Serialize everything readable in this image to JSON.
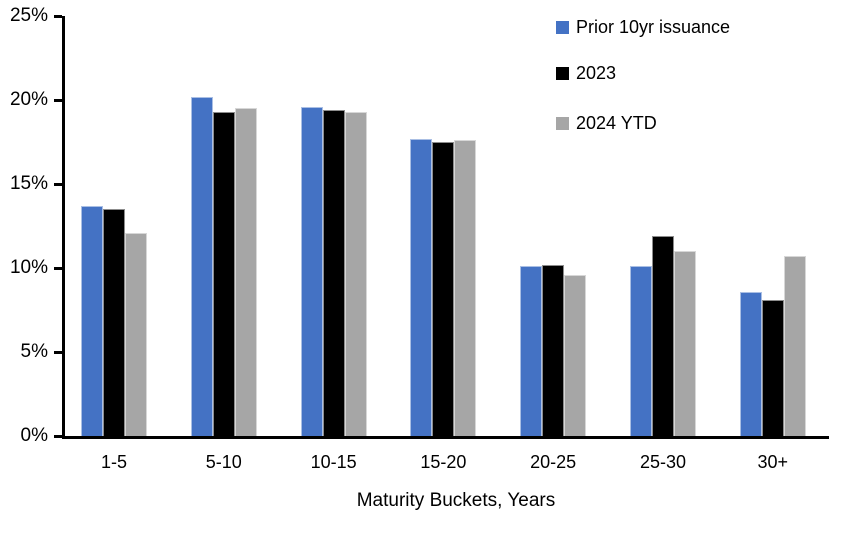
{
  "chart_data": {
    "type": "bar",
    "title": "",
    "xlabel": "Maturity Buckets, Years",
    "ylabel": "",
    "categories": [
      "1-5",
      "5-10",
      "10-15",
      "15-20",
      "20-25",
      "25-30",
      "30+"
    ],
    "series": [
      {
        "name": "Prior 10yr issuance",
        "color": "#4472C4",
        "values": [
          13.7,
          20.2,
          19.6,
          17.7,
          10.1,
          10.1,
          8.6
        ]
      },
      {
        "name": "2023",
        "color": "#000000",
        "values": [
          13.5,
          19.3,
          19.4,
          17.5,
          10.2,
          11.9,
          8.1
        ]
      },
      {
        "name": "2024 YTD",
        "color": "#A6A6A6",
        "values": [
          12.1,
          19.5,
          19.3,
          17.6,
          9.6,
          11.0,
          10.7
        ]
      }
    ],
    "ylim": [
      0,
      25
    ],
    "yticks": [
      {
        "value": 0,
        "label": "0%"
      },
      {
        "value": 5,
        "label": "5%"
      },
      {
        "value": 10,
        "label": "10%"
      },
      {
        "value": 15,
        "label": "15%"
      },
      {
        "value": 20,
        "label": "20%"
      },
      {
        "value": 25,
        "label": "25%"
      }
    ],
    "grid": false,
    "legend_position": "top-right",
    "axis_color": "#000000",
    "background_color": "#FFFFFF"
  }
}
